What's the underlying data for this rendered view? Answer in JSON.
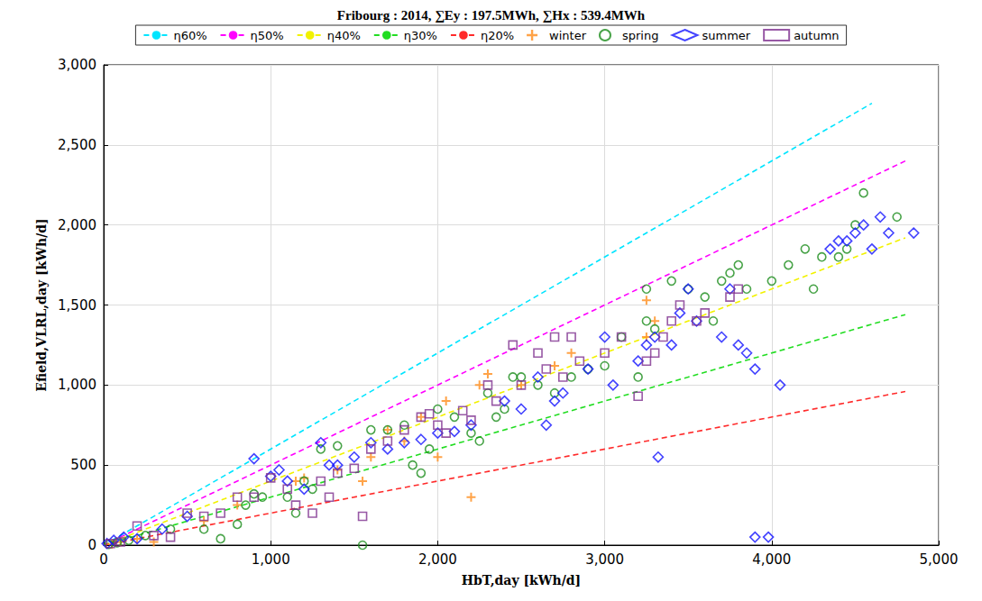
{
  "chart_data": {
    "type": "scatter",
    "title": "Fribourg : 2014, ∑Ey : 197.5MWh, ∑Hx : 539.4MWh",
    "x_label": "HbT,day [kWh/d]",
    "y_label": "Efield,VLRL,day [kWh/d]",
    "xlim": [
      0,
      5000
    ],
    "xticks": [
      0,
      1000,
      2000,
      3000,
      4000,
      5000
    ],
    "ylim": [
      0,
      3000
    ],
    "yticks": [
      0,
      500,
      1000,
      1500,
      2000,
      2500,
      3000
    ],
    "grid": true,
    "legend": "top",
    "series": [
      {
        "name": "η60%",
        "type": "line",
        "line_style": "dashed",
        "color": "#00e5ff",
        "x": [
          0,
          4600
        ],
        "values": [
          0,
          2760
        ]
      },
      {
        "name": "η50%",
        "type": "line",
        "line_style": "dashed",
        "color": "#ff00ff",
        "x": [
          0,
          4800
        ],
        "values": [
          0,
          2400
        ]
      },
      {
        "name": "η40%",
        "type": "line",
        "line_style": "dashed",
        "color": "#f2f200",
        "x": [
          0,
          4800
        ],
        "values": [
          0,
          1920
        ]
      },
      {
        "name": "η30%",
        "type": "line",
        "line_style": "dashed",
        "color": "#22dd22",
        "x": [
          0,
          4800
        ],
        "values": [
          0,
          1440
        ]
      },
      {
        "name": "η20%",
        "type": "line",
        "line_style": "dashed",
        "color": "#ff2a2a",
        "x": [
          0,
          4800
        ],
        "values": [
          0,
          960
        ]
      },
      {
        "name": "winter",
        "type": "scatter",
        "marker": "plus",
        "color": "#ff8c1a",
        "x": [
          50,
          100,
          200,
          300,
          600,
          800,
          1150,
          1200,
          1400,
          1550,
          1600,
          1700,
          1800,
          1900,
          2000,
          2050,
          2200,
          2250,
          2300,
          2500,
          2700,
          2800,
          3250,
          3250,
          3300
        ],
        "values": [
          5,
          20,
          40,
          20,
          150,
          250,
          400,
          420,
          470,
          400,
          550,
          720,
          650,
          800,
          550,
          900,
          300,
          1000,
          1070,
          1000,
          1120,
          1200,
          1530,
          1300,
          1400
        ]
      },
      {
        "name": "spring",
        "type": "scatter",
        "marker": "circle",
        "color": "#1a8c1a",
        "x": [
          30,
          80,
          150,
          250,
          400,
          600,
          700,
          800,
          850,
          900,
          950,
          1100,
          1150,
          1200,
          1250,
          1300,
          1400,
          1550,
          1600,
          1700,
          1800,
          1850,
          1900,
          1950,
          2000,
          2100,
          2200,
          2250,
          2300,
          2350,
          2400,
          2450,
          2500,
          2600,
          2700,
          2800,
          2900,
          3000,
          3100,
          3200,
          3300,
          3250,
          3250,
          3400,
          3500,
          3600,
          3650,
          3700,
          3750,
          3800,
          3850,
          4000,
          4100,
          4200,
          4250,
          4300,
          4400,
          4450,
          4500,
          4550,
          4750
        ],
        "values": [
          5,
          15,
          30,
          60,
          100,
          100,
          40,
          130,
          250,
          320,
          300,
          300,
          200,
          400,
          350,
          600,
          620,
          0,
          720,
          720,
          750,
          500,
          450,
          600,
          850,
          800,
          700,
          650,
          950,
          800,
          850,
          1050,
          1050,
          1000,
          950,
          1050,
          1100,
          1120,
          1300,
          1050,
          1350,
          1400,
          1600,
          1650,
          1600,
          1550,
          1400,
          1650,
          1700,
          1750,
          1600,
          1650,
          1750,
          1850,
          1600,
          1800,
          1800,
          1850,
          2000,
          2200,
          2050
        ]
      },
      {
        "name": "summer",
        "type": "scatter",
        "marker": "diamond",
        "color": "#1414ff",
        "x": [
          20,
          60,
          120,
          200,
          350,
          500,
          900,
          1000,
          1050,
          1100,
          1200,
          1300,
          1350,
          1400,
          1500,
          1600,
          1700,
          1800,
          1900,
          2000,
          2100,
          2200,
          2400,
          2500,
          2600,
          2650,
          2700,
          2750,
          2900,
          3000,
          3050,
          3200,
          3250,
          3300,
          3320,
          3400,
          3450,
          3500,
          3550,
          3700,
          3750,
          3800,
          3850,
          3900,
          3900,
          3980,
          4050,
          4350,
          4400,
          4450,
          4500,
          4550,
          4600,
          4650,
          4700,
          4850
        ],
        "values": [
          10,
          30,
          50,
          40,
          100,
          180,
          540,
          430,
          470,
          400,
          350,
          640,
          500,
          500,
          550,
          640,
          600,
          640,
          660,
          700,
          710,
          750,
          900,
          850,
          1050,
          750,
          900,
          950,
          1100,
          1300,
          1000,
          1150,
          1250,
          1300,
          550,
          1250,
          1450,
          1600,
          1400,
          1300,
          1600,
          1250,
          1200,
          1100,
          50,
          50,
          1000,
          1850,
          1900,
          1900,
          1950,
          2000,
          1850,
          2050,
          1950,
          1950
        ]
      },
      {
        "name": "autumn",
        "type": "scatter",
        "marker": "square",
        "color": "#7e2f8e",
        "x": [
          40,
          100,
          200,
          300,
          400,
          500,
          600,
          700,
          800,
          900,
          1000,
          1100,
          1150,
          1250,
          1300,
          1350,
          1400,
          1500,
          1550,
          1600,
          1700,
          1800,
          1900,
          1950,
          2000,
          2050,
          2150,
          2200,
          2300,
          2350,
          2450,
          2500,
          2600,
          2650,
          2700,
          2750,
          2800,
          2850,
          3000,
          3100,
          3200,
          3250,
          3300,
          3350,
          3400,
          3450,
          3550,
          3600,
          3750,
          3800
        ],
        "values": [
          10,
          20,
          120,
          60,
          50,
          200,
          180,
          200,
          300,
          300,
          420,
          350,
          250,
          200,
          400,
          300,
          450,
          480,
          180,
          600,
          650,
          720,
          800,
          820,
          750,
          700,
          840,
          780,
          1000,
          900,
          1250,
          1000,
          1200,
          1100,
          1300,
          1050,
          1300,
          1150,
          1200,
          1300,
          930,
          1150,
          1200,
          1300,
          1400,
          1500,
          1400,
          1450,
          1550,
          1600
        ]
      }
    ]
  }
}
